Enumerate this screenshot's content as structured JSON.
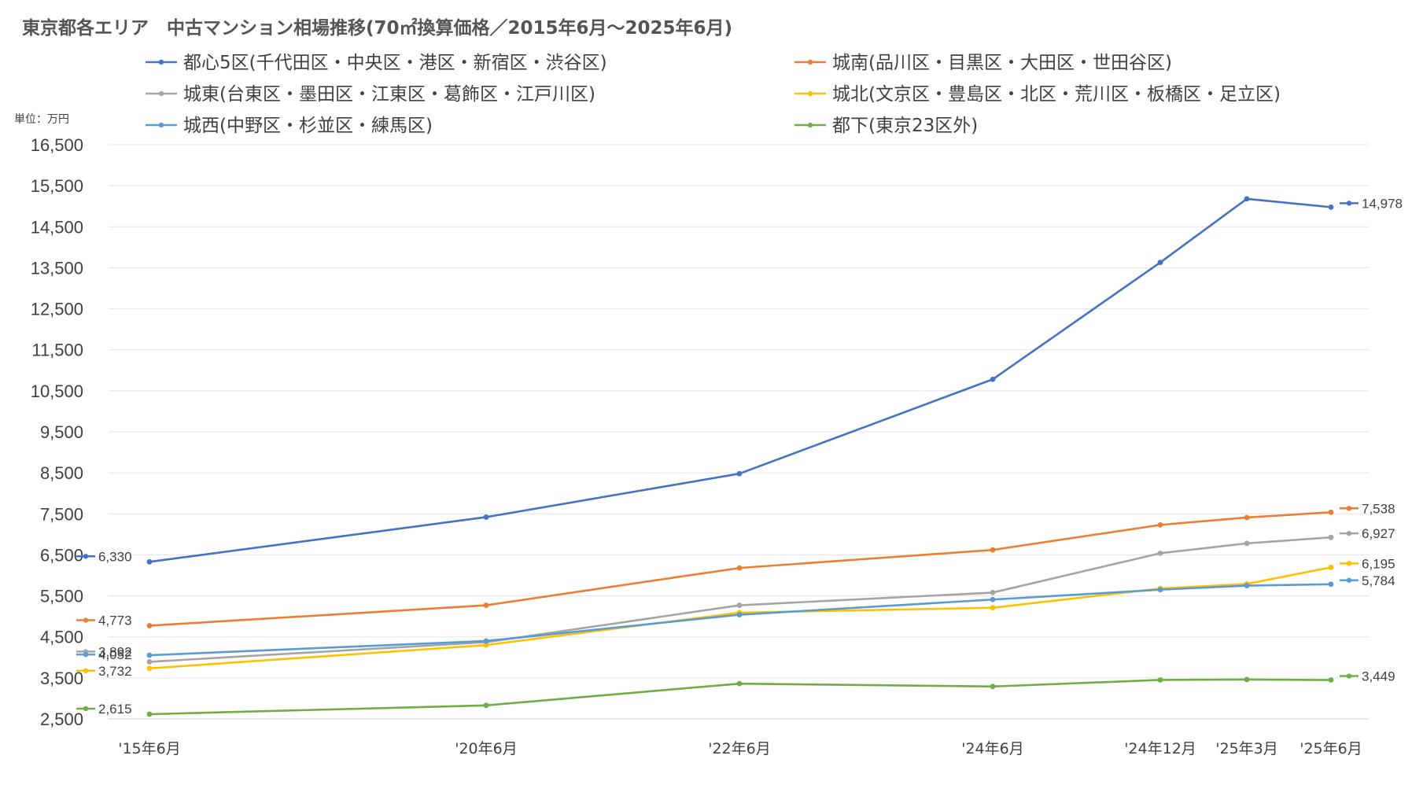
{
  "chart_data": {
    "type": "line",
    "title": "東京都各エリア　中古マンション相場推移(70㎡換算価格／2015年6月〜2025年6月)",
    "unit": "単位：万円",
    "categories": [
      "'15年6月",
      "'20年6月",
      "'22年6月",
      "'24年6月",
      "'24年12月",
      "'25年3月",
      "'25年6月"
    ],
    "ylim": [
      2500,
      16500
    ],
    "yticks": [
      "2,500",
      "3,500",
      "4,500",
      "5,500",
      "6,500",
      "7,500",
      "8,500",
      "9,500",
      "10,500",
      "11,500",
      "12,500",
      "13,500",
      "14,500",
      "15,500",
      "16,500"
    ],
    "grid": true,
    "legend_position": "top",
    "series": [
      {
        "name": "都心5区(千代田区・中央区・港区・新宿区・渋谷区)",
        "color": "#4472c4",
        "values": [
          6330,
          7420,
          8480,
          10780,
          13630,
          15180,
          14978
        ],
        "start_label": "6,330",
        "end_label": "14,978"
      },
      {
        "name": "城南(品川区・目黒区・大田区・世田谷区)",
        "color": "#ed7d31",
        "values": [
          4773,
          5270,
          6180,
          6620,
          7230,
          7410,
          7538
        ],
        "start_label": "4,773",
        "end_label": "7,538"
      },
      {
        "name": "城東(台東区・墨田区・江東区・葛飾区・江戸川区)",
        "color": "#a5a5a5",
        "values": [
          3892,
          4370,
          5270,
          5580,
          6540,
          6780,
          6927
        ],
        "start_label": "3,892",
        "end_label": "6,927"
      },
      {
        "name": "城北(文京区・豊島区・北区・荒川区・板橋区・足立区)",
        "color": "#ffc000",
        "values": [
          3732,
          4300,
          5090,
          5210,
          5680,
          5790,
          6195
        ],
        "start_label": "3,732",
        "end_label": "6,195"
      },
      {
        "name": "城西(中野区・杉並区・練馬区)",
        "color": "#5b9bd5",
        "values": [
          4052,
          4400,
          5040,
          5410,
          5650,
          5750,
          5784
        ],
        "start_label": "4,052",
        "end_label": "5,784"
      },
      {
        "name": "都下(東京23区外)",
        "color": "#70ad47",
        "values": [
          2615,
          2830,
          3360,
          3290,
          3450,
          3460,
          3449
        ],
        "start_label": "2,615",
        "end_label": "3,449"
      }
    ]
  }
}
